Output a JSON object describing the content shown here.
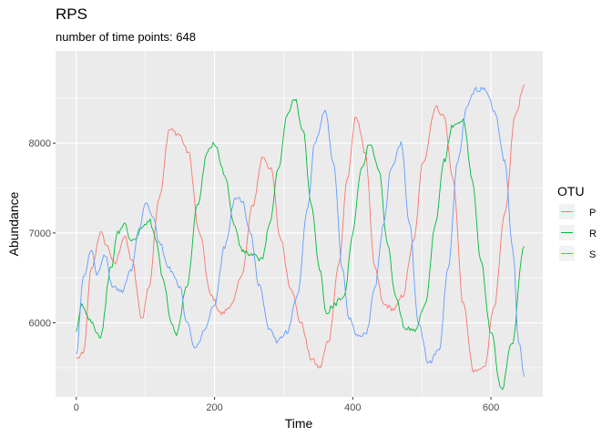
{
  "chart_data": {
    "type": "line",
    "title": "RPS",
    "subtitle": "number of time points: 648",
    "xlabel": "Time",
    "ylabel": "Abundance",
    "xlim": [
      -30,
      675
    ],
    "ylim": [
      5175,
      9025
    ],
    "x_ticks": [
      0,
      200,
      400,
      600
    ],
    "y_ticks": [
      6000,
      7000,
      8000
    ],
    "x_tick_labels": [
      "0",
      "200",
      "400",
      "600"
    ],
    "y_tick_labels": [
      "6000",
      "7000",
      "8000"
    ],
    "legend": {
      "title": "OTU",
      "position": "right"
    },
    "series": [
      {
        "name": "P",
        "color": "#F8766D",
        "points": [
          [
            0,
            5600
          ],
          [
            10,
            5650
          ],
          [
            22,
            6600
          ],
          [
            35,
            7000
          ],
          [
            45,
            6850
          ],
          [
            55,
            6650
          ],
          [
            70,
            6960
          ],
          [
            80,
            6700
          ],
          [
            95,
            6050
          ],
          [
            105,
            6400
          ],
          [
            120,
            7400
          ],
          [
            135,
            8150
          ],
          [
            148,
            8100
          ],
          [
            162,
            7900
          ],
          [
            178,
            7000
          ],
          [
            195,
            6300
          ],
          [
            210,
            6100
          ],
          [
            225,
            6200
          ],
          [
            240,
            6550
          ],
          [
            255,
            7300
          ],
          [
            270,
            7850
          ],
          [
            282,
            7700
          ],
          [
            295,
            6950
          ],
          [
            310,
            6400
          ],
          [
            325,
            6000
          ],
          [
            340,
            5600
          ],
          [
            352,
            5500
          ],
          [
            365,
            5800
          ],
          [
            380,
            6650
          ],
          [
            392,
            7600
          ],
          [
            405,
            8300
          ],
          [
            418,
            7900
          ],
          [
            432,
            6600
          ],
          [
            445,
            6200
          ],
          [
            460,
            6150
          ],
          [
            472,
            6300
          ],
          [
            488,
            6900
          ],
          [
            502,
            7800
          ],
          [
            520,
            8400
          ],
          [
            532,
            8300
          ],
          [
            545,
            7600
          ],
          [
            560,
            6200
          ],
          [
            575,
            5450
          ],
          [
            590,
            5500
          ],
          [
            605,
            6200
          ],
          [
            620,
            7200
          ],
          [
            635,
            8300
          ],
          [
            648,
            8650
          ]
        ]
      },
      {
        "name": "R",
        "color": "#00BA38",
        "points": [
          [
            0,
            5900
          ],
          [
            8,
            6200
          ],
          [
            18,
            6050
          ],
          [
            35,
            5850
          ],
          [
            50,
            6600
          ],
          [
            60,
            7000
          ],
          [
            70,
            7100
          ],
          [
            80,
            6900
          ],
          [
            95,
            7050
          ],
          [
            105,
            7150
          ],
          [
            115,
            6950
          ],
          [
            125,
            6500
          ],
          [
            138,
            6000
          ],
          [
            145,
            5880
          ],
          [
            160,
            6400
          ],
          [
            175,
            7300
          ],
          [
            190,
            7900
          ],
          [
            200,
            8000
          ],
          [
            215,
            7650
          ],
          [
            228,
            7100
          ],
          [
            240,
            6800
          ],
          [
            255,
            6750
          ],
          [
            268,
            6700
          ],
          [
            280,
            7100
          ],
          [
            292,
            7700
          ],
          [
            305,
            8300
          ],
          [
            316,
            8500
          ],
          [
            328,
            8150
          ],
          [
            340,
            7300
          ],
          [
            352,
            6600
          ],
          [
            362,
            6100
          ],
          [
            372,
            6200
          ],
          [
            388,
            6300
          ],
          [
            400,
            7000
          ],
          [
            412,
            7700
          ],
          [
            425,
            8000
          ],
          [
            438,
            7700
          ],
          [
            450,
            6900
          ],
          [
            462,
            6300
          ],
          [
            475,
            5950
          ],
          [
            490,
            5900
          ],
          [
            505,
            6200
          ],
          [
            520,
            7100
          ],
          [
            532,
            7800
          ],
          [
            545,
            8200
          ],
          [
            560,
            8250
          ],
          [
            573,
            7600
          ],
          [
            585,
            6700
          ],
          [
            600,
            5900
          ],
          [
            615,
            5250
          ],
          [
            630,
            5750
          ],
          [
            648,
            6850
          ]
        ]
      },
      {
        "name": "S",
        "color": "#619CFF",
        "points": [
          [
            0,
            5650
          ],
          [
            10,
            6500
          ],
          [
            22,
            6800
          ],
          [
            30,
            6550
          ],
          [
            42,
            6750
          ],
          [
            52,
            6400
          ],
          [
            65,
            6350
          ],
          [
            80,
            6600
          ],
          [
            90,
            7000
          ],
          [
            100,
            7350
          ],
          [
            110,
            7200
          ],
          [
            120,
            6900
          ],
          [
            135,
            6600
          ],
          [
            150,
            6400
          ],
          [
            160,
            6000
          ],
          [
            172,
            5700
          ],
          [
            185,
            5900
          ],
          [
            200,
            6200
          ],
          [
            215,
            6850
          ],
          [
            230,
            7400
          ],
          [
            240,
            7350
          ],
          [
            252,
            7000
          ],
          [
            265,
            6400
          ],
          [
            278,
            5950
          ],
          [
            290,
            5800
          ],
          [
            305,
            5900
          ],
          [
            320,
            6300
          ],
          [
            335,
            7300
          ],
          [
            345,
            8000
          ],
          [
            360,
            8350
          ],
          [
            372,
            7800
          ],
          [
            385,
            6600
          ],
          [
            395,
            6050
          ],
          [
            408,
            5850
          ],
          [
            420,
            5900
          ],
          [
            432,
            6400
          ],
          [
            445,
            7100
          ],
          [
            455,
            7700
          ],
          [
            470,
            8000
          ],
          [
            482,
            7100
          ],
          [
            495,
            6000
          ],
          [
            510,
            5550
          ],
          [
            525,
            5700
          ],
          [
            538,
            6600
          ],
          [
            552,
            7800
          ],
          [
            565,
            8400
          ],
          [
            578,
            8600
          ],
          [
            592,
            8600
          ],
          [
            605,
            8350
          ],
          [
            620,
            7800
          ],
          [
            632,
            6800
          ],
          [
            640,
            5800
          ],
          [
            648,
            5400
          ]
        ]
      }
    ]
  }
}
